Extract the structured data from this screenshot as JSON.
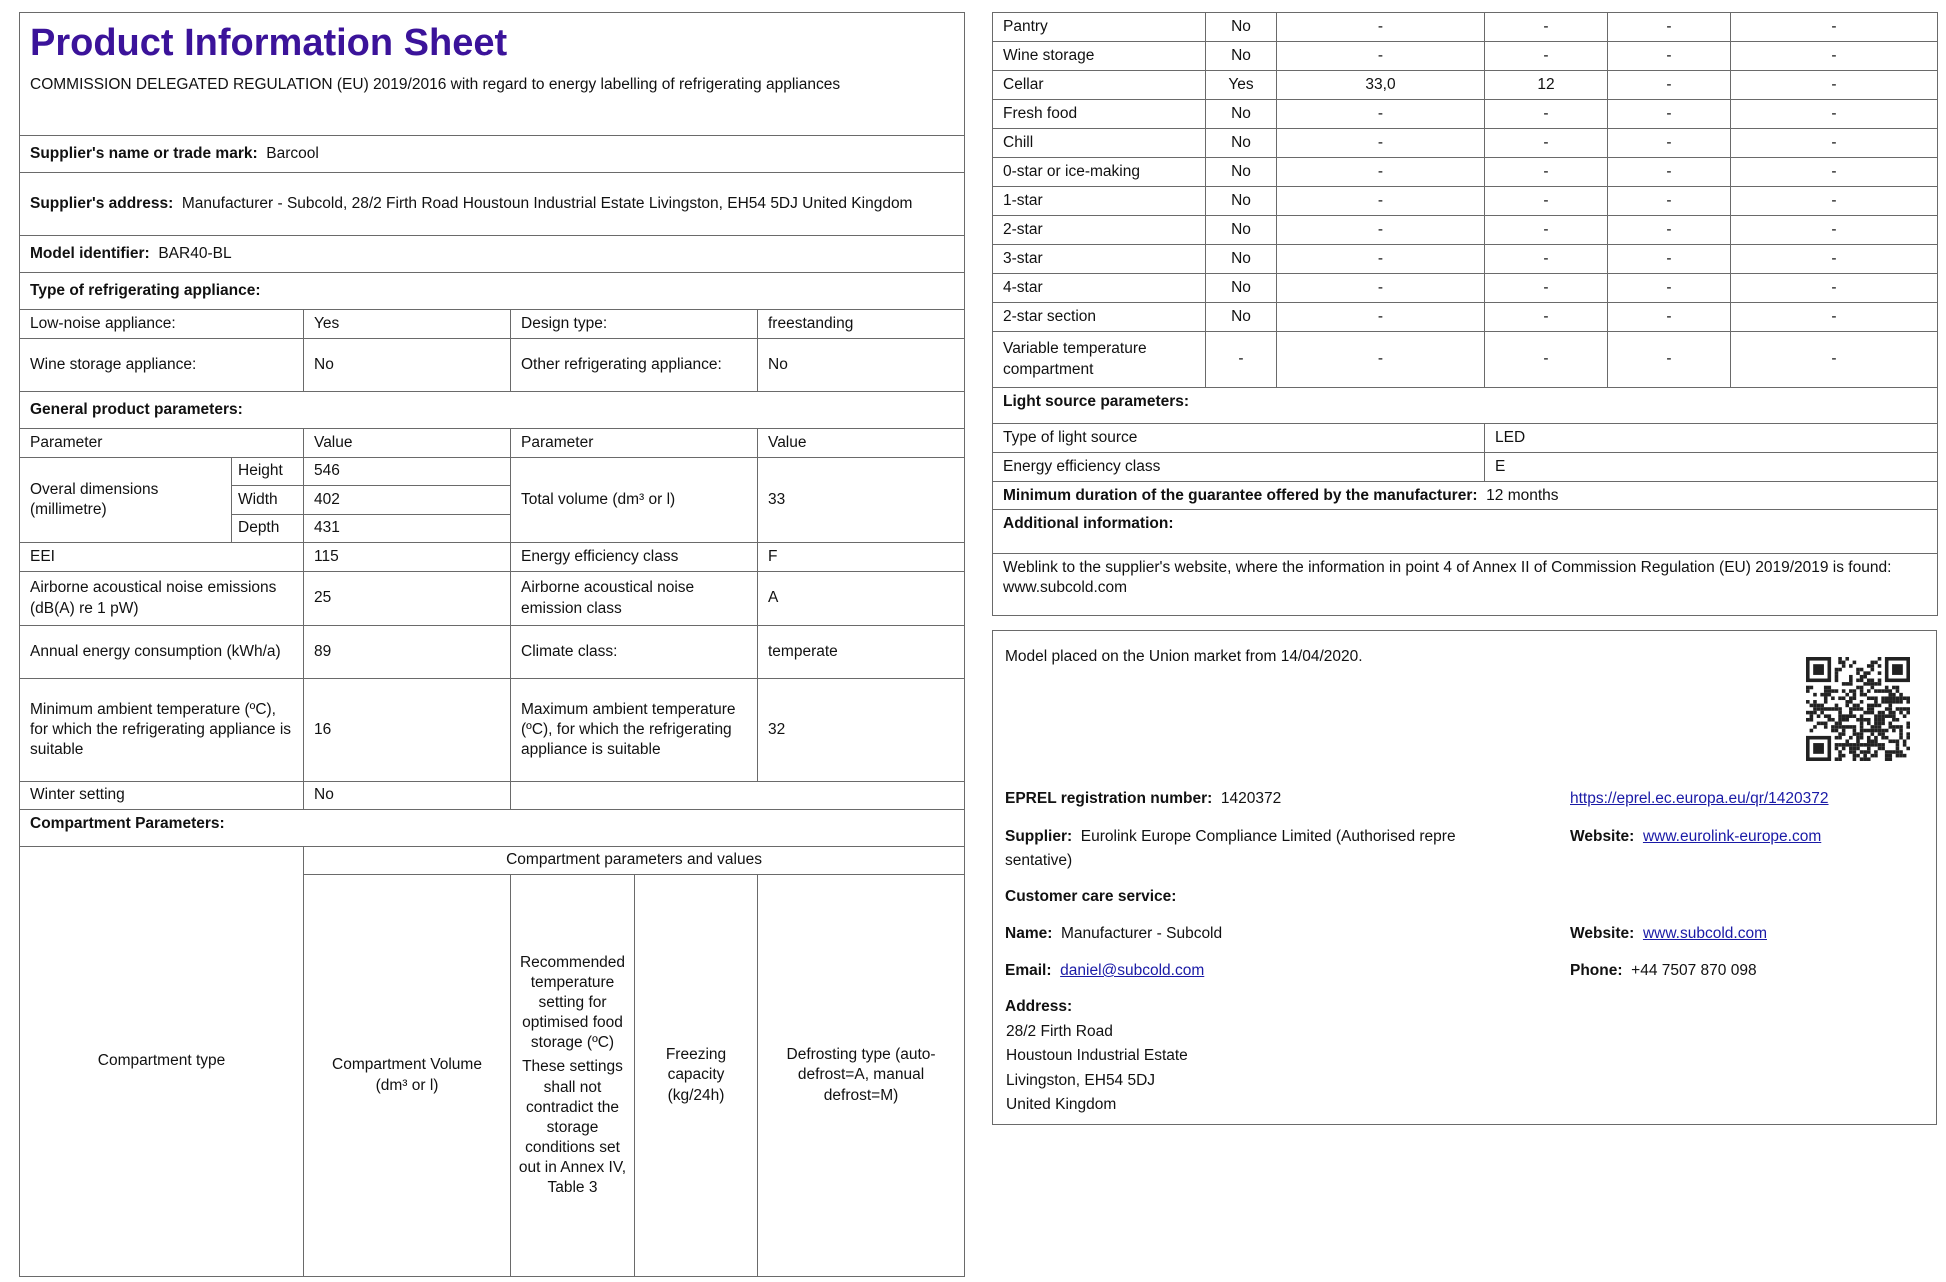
{
  "header": {
    "title": "Product Information Sheet",
    "regulation": "COMMISSION DELEGATED REGULATION (EU) 2019/2016 with regard to energy labelling of refrigerating appliances"
  },
  "supplier": {
    "name_label": "Supplier's name or trade mark:",
    "name": "Barcool",
    "address_label": "Supplier's address:",
    "address": "Manufacturer - Subcold, 28/2 Firth Road Houstoun Industrial Estate Livingston, EH54 5DJ United Kingdom"
  },
  "model": {
    "label": "Model identifier:",
    "value": "BAR40-BL"
  },
  "type": {
    "heading": "Type of refrigerating appliance:",
    "low_noise_label": "Low-noise appliance:",
    "low_noise": "Yes",
    "design_label": "Design type:",
    "design": "freestanding",
    "wine_label": "Wine storage appliance:",
    "wine": "No",
    "other_label": "Other refrigerating appliance:",
    "other": "No"
  },
  "general": {
    "heading": "General product parameters:",
    "param_h": "Parameter",
    "value_h": "Value",
    "dims_label": "Overal dimensions (millimetre)",
    "height_label": "Height",
    "height": "546",
    "width_label": "Width",
    "width": "402",
    "depth_label": "Depth",
    "depth": "431",
    "volume_label": "Total volume (dm³ or l)",
    "volume": "33",
    "eei_label": "EEI",
    "eei": "115",
    "eec_label": "Energy efficiency class",
    "eec": "F",
    "noise_label": "Airborne acoustical noise emissions (dB(A) re 1 pW)",
    "noise": "25",
    "noise_class_label": "Airborne acoustical noise emission class",
    "noise_class": "A",
    "aec_label": "Annual energy consumption (kWh/a)",
    "aec": "89",
    "climate_label": "Climate class:",
    "climate": "temperate",
    "min_label": "Minimum ambient temperature (ºC), for which the refrigerating appliance is suitable",
    "min": "16",
    "max_label": "Maximum ambient temperature (ºC), for which the refrigerating appliance is suitable",
    "max": "32",
    "winter_label": "Winter setting",
    "winter": "No"
  },
  "compartment": {
    "heading": "Compartment Parameters:",
    "group_h": "Compartment parameters and values",
    "type_h": "Compartment type",
    "volume_h": "Compartment Volume (dm³ or l)",
    "temp_h": "Recommended temperature setting for optimised food storage (ºC)",
    "temp_note": "These settings shall not contradict the storage conditions set out in Annex IV, Table 3",
    "freeze_h": "Freezing capacity (kg/24h)",
    "defrost_h": "Defrosting type (auto-defrost=A, manual defrost=M)",
    "rows": [
      [
        "Pantry",
        "No",
        "-",
        "-",
        "-",
        "-"
      ],
      [
        "Wine storage",
        "No",
        "-",
        "-",
        "-",
        "-"
      ],
      [
        "Cellar",
        "Yes",
        "33,0",
        "12",
        "-",
        "-"
      ],
      [
        "Fresh food",
        "No",
        "-",
        "-",
        "-",
        "-"
      ],
      [
        "Chill",
        "No",
        "-",
        "-",
        "-",
        "-"
      ],
      [
        "0-star or ice-making",
        "No",
        "-",
        "-",
        "-",
        "-"
      ],
      [
        "1-star",
        "No",
        "-",
        "-",
        "-",
        "-"
      ],
      [
        "2-star",
        "No",
        "-",
        "-",
        "-",
        "-"
      ],
      [
        "3-star",
        "No",
        "-",
        "-",
        "-",
        "-"
      ],
      [
        "4-star",
        "No",
        "-",
        "-",
        "-",
        "-"
      ],
      [
        "2-star section",
        "No",
        "-",
        "-",
        "-",
        "-"
      ],
      [
        "Variable temperature compartment",
        "-",
        "-",
        "-",
        "-",
        "-"
      ]
    ]
  },
  "light": {
    "heading": "Light source parameters:",
    "type_label": "Type of light source",
    "type": "LED",
    "class_label": "Energy efficiency class",
    "class": "E"
  },
  "guarantee": {
    "label": "Minimum duration of the guarantee offered by the manufacturer:",
    "value": "12 months"
  },
  "additional": {
    "heading": "Additional information:",
    "text": "Weblink to the supplier's website, where the information in point 4 of Annex II of Commission Regulation (EU) 2019/2019 is found:",
    "link": "www.subcold.com"
  },
  "eprel": {
    "market": "Model placed on the Union market from 14/04/2020.",
    "reg_label": "EPREL registration number:",
    "reg": "1420372",
    "url": "https://eprel.ec.europa.eu/qr/1420372",
    "supplier_label": "Supplier:",
    "supplier_1": "Eurolink Europe Compliance Limited (Authorised repre",
    "supplier_2": "sentative)",
    "website_label": "Website:",
    "supplier_site": "www.eurolink-europe.com",
    "care_heading": "Customer care service:",
    "name_label": "Name:",
    "name": "Manufacturer - Subcold",
    "care_site": "www.subcold.com",
    "email_label": "Email:",
    "email": "daniel@subcold.com",
    "phone_label": "Phone:",
    "phone": "+44 7507 870 098",
    "address_label": "Address:",
    "address": [
      "28/2 Firth Road",
      "Houstoun Industrial Estate",
      "Livingston, EH54 5DJ",
      "United Kingdom"
    ]
  }
}
